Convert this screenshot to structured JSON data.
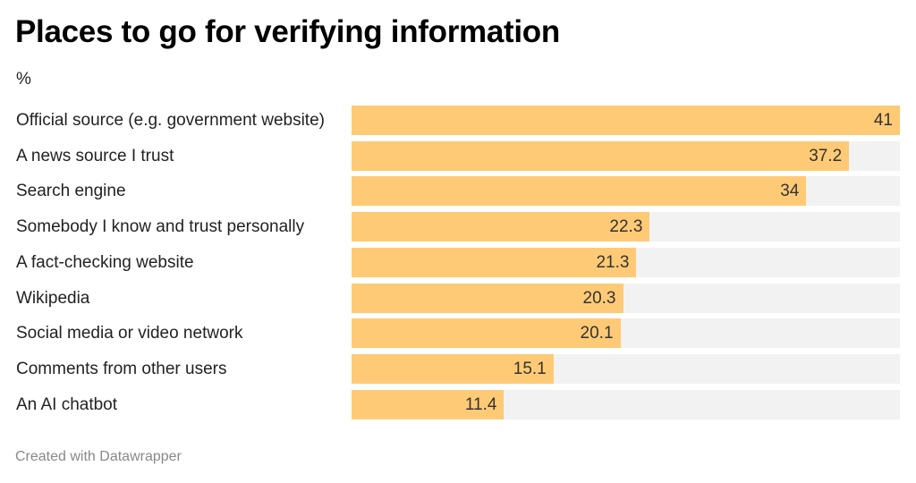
{
  "chart_data": {
    "type": "bar",
    "orientation": "horizontal",
    "title": "Places to go for verifying information",
    "subtitle": "%",
    "categories": [
      "Official source (e.g. government website)",
      "A news source I trust",
      "Search engine",
      "Somebody I know and trust personally",
      "A fact-checking website",
      "Wikipedia",
      "Social media or video network",
      "Comments from other users",
      "An AI chatbot"
    ],
    "values": [
      41,
      37.2,
      34,
      22.3,
      21.3,
      20.3,
      20.1,
      15.1,
      11.4
    ],
    "xlim": [
      0,
      41
    ],
    "grid": false,
    "legend": "none",
    "bar_color": "#ffca76",
    "track_color": "#f2f2f2"
  },
  "footer": "Created with Datawrapper"
}
